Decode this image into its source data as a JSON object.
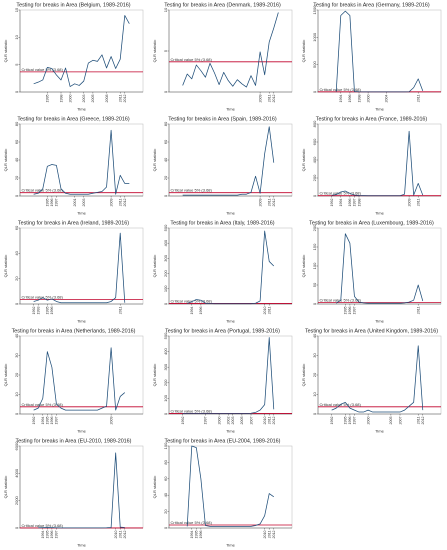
{
  "chart_data": [
    {
      "type": "line",
      "title": "Testing for breaks in Area (Belgium, 1989-2016)",
      "xlabel": "Time",
      "ylabel": "QLR statistic",
      "ylim": [
        0,
        15
      ],
      "yticks": [
        0,
        5,
        10,
        15
      ],
      "xticks": [
        "1995",
        "1998",
        "2000",
        "2003",
        "2005",
        "2008",
        "2011",
        "2012"
      ],
      "critical_value": 3.68,
      "critical_label": "Critical value 5% (3.68)",
      "x": [
        1992,
        1993,
        1994,
        1995,
        1996,
        1997,
        1998,
        1999,
        2000,
        2001,
        2002,
        2003,
        2004,
        2005,
        2006,
        2007,
        2008,
        2009,
        2010,
        2011,
        2012,
        2013
      ],
      "values": [
        1.5,
        1.8,
        2.2,
        4.5,
        4.3,
        3.1,
        2.2,
        4.4,
        1.0,
        1.5,
        1.2,
        2.0,
        5.3,
        5.8,
        5.6,
        6.8,
        4.4,
        6.5,
        4.3,
        6.0,
        14.0,
        12.5
      ]
    },
    {
      "type": "line",
      "title": "Testing for breaks in Area (Denmark, 1989-2016)",
      "xlabel": "Time",
      "ylabel": "QLR statistic",
      "ylim": [
        0,
        10
      ],
      "yticks": [
        0,
        5,
        10
      ],
      "xticks": [
        "2009",
        "2011",
        "2012"
      ],
      "critical_value": 3.68,
      "critical_label": "Critical value 5% (3.68)",
      "x": [
        1992,
        1993,
        1994,
        1995,
        1996,
        1997,
        1998,
        1999,
        2000,
        2001,
        2002,
        2003,
        2004,
        2005,
        2006,
        2007,
        2008,
        2009,
        2010,
        2011,
        2012,
        2013
      ],
      "values": [
        0.8,
        2.2,
        1.6,
        3.3,
        2.6,
        1.8,
        3.5,
        2.3,
        0.9,
        2.4,
        1.4,
        0.7,
        1.5,
        1.0,
        0.6,
        2.0,
        0.8,
        4.9,
        2.1,
        6.1,
        7.8,
        9.7
      ]
    },
    {
      "type": "line",
      "title": "Testing for breaks in Area (Germany, 1989-2016)",
      "xlabel": "Time",
      "ylabel": "QLR statistic",
      "ylim": [
        0,
        1500
      ],
      "yticks": [
        0,
        500,
        1000,
        1500
      ],
      "xticks": [
        "1994",
        "1996",
        "1998",
        "2000",
        "2004",
        "2011"
      ],
      "critical_value": 3.68,
      "critical_label": "Critical value 5% (3.68)",
      "x": [
        1993,
        1994,
        1995,
        1996,
        1997,
        1998,
        1999,
        2000,
        2001,
        2002,
        2003,
        2004,
        2005,
        2006,
        2007,
        2008,
        2009,
        2010,
        2011,
        2012
      ],
      "values": [
        5,
        1400,
        1480,
        1400,
        10,
        5,
        3,
        2,
        2,
        2,
        2,
        2,
        2,
        2,
        2,
        2,
        5,
        80,
        240,
        20
      ]
    },
    {
      "type": "line",
      "title": "Testing for breaks in Area (Greece, 1989-2016)",
      "xlabel": "Time",
      "ylabel": "QLR statistic",
      "ylim": [
        0,
        80
      ],
      "yticks": [
        0,
        20,
        40,
        60,
        80
      ],
      "xticks": [
        "1995",
        "1996",
        "1997",
        "2001",
        "2003",
        "2009",
        "2011",
        "2012"
      ],
      "critical_value": 3.68,
      "critical_label": "Critical value 5% (3.68)",
      "x": [
        1992,
        1993,
        1994,
        1995,
        1996,
        1997,
        1998,
        1999,
        2000,
        2001,
        2002,
        2003,
        2004,
        2005,
        2006,
        2007,
        2008,
        2009,
        2010,
        2011,
        2012,
        2013
      ],
      "values": [
        2,
        3,
        8,
        33,
        35,
        34,
        8,
        3,
        2,
        2,
        2,
        2,
        2,
        3,
        4,
        5,
        10,
        73,
        2,
        23,
        14,
        14
      ]
    },
    {
      "type": "line",
      "title": "Testing for breaks in Area (Spain, 1989-2016)",
      "xlabel": "Time",
      "ylabel": "QLR statistic",
      "ylim": [
        0,
        80
      ],
      "yticks": [
        0,
        20,
        40,
        60,
        80
      ],
      "xticks": [
        "2009",
        "2011",
        "2012"
      ],
      "critical_value": 3.68,
      "critical_label": "Critical value 5% (3.68)",
      "x": [
        1992,
        1993,
        1994,
        1995,
        1996,
        1997,
        1998,
        1999,
        2000,
        2001,
        2002,
        2003,
        2004,
        2005,
        2006,
        2007,
        2008,
        2009,
        2010,
        2011,
        2012
      ],
      "values": [
        1,
        1,
        1,
        1,
        1,
        1,
        1,
        1,
        1,
        1,
        1,
        1,
        1,
        2,
        2,
        4,
        22,
        3,
        47,
        77,
        37
      ]
    },
    {
      "type": "line",
      "title": "Testing for breaks in Area (France, 1989-2016)",
      "xlabel": "Time",
      "ylabel": "QLR statistic",
      "ylim": [
        0,
        800
      ],
      "yticks": [
        0,
        200,
        400,
        600,
        800
      ],
      "xticks": [
        "1992",
        "1994",
        "1996",
        "1997",
        "1998",
        "2009",
        "2011"
      ],
      "critical_value": 3.68,
      "critical_label": "Critical value 5% (3.68)",
      "x": [
        1992,
        1993,
        1994,
        1995,
        1996,
        1997,
        1998,
        1999,
        2000,
        2001,
        2002,
        2003,
        2004,
        2005,
        2006,
        2007,
        2008,
        2009,
        2010,
        2011,
        2012
      ],
      "values": [
        8,
        15,
        45,
        55,
        30,
        10,
        5,
        4,
        3,
        3,
        3,
        3,
        3,
        3,
        3,
        3,
        20,
        720,
        10,
        140,
        10
      ]
    },
    {
      "type": "line",
      "title": "Testing for breaks in Area (Ireland, 1989-2016)",
      "xlabel": "Time",
      "ylabel": "QLR statistic",
      "ylim": [
        0,
        60
      ],
      "yticks": [
        0,
        20,
        40,
        60
      ],
      "xticks": [
        "1992",
        "1993",
        "1995",
        "1996",
        "2011"
      ],
      "critical_value": 3.68,
      "critical_label": "Critical value 5% (3.68)",
      "x": [
        1992,
        1993,
        1994,
        1995,
        1996,
        1997,
        1998,
        1999,
        2000,
        2001,
        2002,
        2003,
        2004,
        2005,
        2006,
        2007,
        2008,
        2009,
        2010,
        2011,
        2012
      ],
      "values": [
        2,
        3,
        5,
        3,
        4,
        2,
        1,
        1,
        1,
        1,
        1,
        1,
        1,
        1,
        1,
        1,
        1,
        2,
        5,
        56,
        1
      ]
    },
    {
      "type": "line",
      "title": "Testing for breaks in Area (Italy, 1989-2016)",
      "xlabel": "Time",
      "ylabel": "QLR statistic",
      "ylim": [
        0,
        500
      ],
      "yticks": [
        0,
        100,
        200,
        300,
        400,
        500
      ],
      "xticks": [
        "1994",
        "1996",
        "2010",
        "2011"
      ],
      "critical_value": 3.68,
      "critical_label": "Critical value 5% (3.68)",
      "x": [
        1993,
        1994,
        1995,
        1996,
        1997,
        1998,
        1999,
        2000,
        2001,
        2002,
        2003,
        2004,
        2005,
        2006,
        2007,
        2008,
        2009,
        2010,
        2011,
        2012
      ],
      "values": [
        3,
        15,
        30,
        25,
        5,
        3,
        2,
        2,
        2,
        2,
        2,
        2,
        2,
        2,
        2,
        5,
        20,
        480,
        280,
        250
      ]
    },
    {
      "type": "line",
      "title": "Testing for breaks in Area (Luxembourg, 1989-2016)",
      "xlabel": "Time",
      "ylabel": "QLR statistic",
      "ylim": [
        0,
        200
      ],
      "yticks": [
        0,
        50,
        100,
        150,
        200
      ],
      "xticks": [
        "1995",
        "1996",
        "1997",
        "2011"
      ],
      "critical_value": 3.68,
      "critical_label": "Critical value 5% (3.68)",
      "x": [
        1993,
        1994,
        1995,
        1996,
        1997,
        1998,
        1999,
        2000,
        2001,
        2002,
        2003,
        2004,
        2005,
        2006,
        2007,
        2008,
        2009,
        2010,
        2011,
        2012
      ],
      "values": [
        2,
        10,
        185,
        160,
        20,
        5,
        3,
        2,
        2,
        2,
        2,
        2,
        2,
        2,
        2,
        3,
        5,
        10,
        50,
        8
      ]
    },
    {
      "type": "line",
      "title": "Testing for breaks in Area (Netherlands, 1989-2016)",
      "xlabel": "Time",
      "ylabel": "QLR statistic",
      "ylim": [
        0,
        40
      ],
      "yticks": [
        0,
        10,
        20,
        30,
        40
      ],
      "xticks": [
        "1992",
        "1994",
        "1995",
        "1996",
        "1997",
        "2009"
      ],
      "critical_value": 3.68,
      "critical_label": "Critical value 5% (3.68)",
      "x": [
        1992,
        1993,
        1994,
        1995,
        1996,
        1997,
        1998,
        1999,
        2000,
        2001,
        2002,
        2003,
        2004,
        2005,
        2006,
        2007,
        2008,
        2009,
        2010,
        2011,
        2012
      ],
      "values": [
        2,
        3,
        8,
        32,
        24,
        5,
        3,
        2,
        2,
        2,
        2,
        2,
        2,
        2,
        2,
        3,
        4,
        34,
        2,
        9,
        11
      ]
    },
    {
      "type": "line",
      "title": "Testing for breaks in Area (Portugal, 1989-2016)",
      "xlabel": "Time",
      "ylabel": "QLR statistic",
      "ylim": [
        0,
        500
      ],
      "yticks": [
        0,
        100,
        200,
        300,
        400,
        500
      ],
      "xticks": [
        "1992",
        "1997",
        "2000",
        "2002",
        "2003",
        "2005",
        "2007",
        "2010",
        "2011",
        "2012"
      ],
      "critical_value": 3.68,
      "critical_label": "Critical value 5% (3.68)",
      "x": [
        1992,
        1993,
        1994,
        1995,
        1996,
        1997,
        1998,
        1999,
        2000,
        2001,
        2002,
        2003,
        2004,
        2005,
        2006,
        2007,
        2008,
        2009,
        2010,
        2011,
        2012
      ],
      "values": [
        3,
        3,
        3,
        3,
        3,
        3,
        3,
        3,
        3,
        3,
        3,
        3,
        3,
        3,
        3,
        5,
        10,
        25,
        60,
        490,
        30
      ]
    },
    {
      "type": "line",
      "title": "Testing for breaks in Area (United Kingdom, 1989-2016)",
      "xlabel": "Time",
      "ylabel": "QLR statistic",
      "ylim": [
        0,
        40
      ],
      "yticks": [
        0,
        10,
        20,
        30,
        40
      ],
      "xticks": [
        "1992",
        "1995",
        "1996",
        "1997",
        "2000",
        "2005",
        "2007",
        "2011",
        "2012"
      ],
      "critical_value": 3.68,
      "critical_label": "Critical value 5% (3.68)",
      "x": [
        1992,
        1993,
        1994,
        1995,
        1996,
        1997,
        1998,
        1999,
        2000,
        2001,
        2002,
        2003,
        2004,
        2005,
        2006,
        2007,
        2008,
        2009,
        2010,
        2011,
        2012
      ],
      "values": [
        2,
        3,
        5,
        6,
        3,
        2,
        1,
        1,
        2,
        1,
        1,
        1,
        1,
        1,
        1,
        1,
        2,
        4,
        6,
        35,
        2
      ]
    },
    {
      "type": "line",
      "title": "Testing for breaks in Area (EU-2010, 1989-2016)",
      "xlabel": "Time",
      "ylabel": "QLR statistic",
      "ylim": [
        0,
        6000
      ],
      "yticks": [
        0,
        2000,
        4000,
        6000
      ],
      "xticks": [
        "1994",
        "1995",
        "1996",
        "1997",
        "2010",
        "2011",
        "2012"
      ],
      "critical_value": 3.68,
      "critical_label": "Critical value 5% (3.68)",
      "x": [
        1993,
        1994,
        1995,
        1996,
        1997,
        1998,
        1999,
        2000,
        2001,
        2002,
        2003,
        2004,
        2005,
        2006,
        2007,
        2008,
        2009,
        2010,
        2011,
        2012
      ],
      "values": [
        20,
        30,
        40,
        30,
        20,
        10,
        10,
        10,
        10,
        10,
        10,
        10,
        10,
        10,
        10,
        20,
        40,
        5500,
        60,
        40
      ]
    },
    {
      "type": "line",
      "title": "Testing for breaks in Area (EU-2004, 1989-2016)",
      "xlabel": "Time",
      "ylabel": "QLR statistic",
      "ylim": [
        0,
        100
      ],
      "yticks": [
        0,
        20,
        40,
        60,
        80,
        100
      ],
      "xticks": [
        "1994",
        "1995",
        "1996",
        "2010",
        "2011",
        "2012"
      ],
      "critical_value": 3.68,
      "critical_label": "Critical value 5% (3.68)",
      "x": [
        1993,
        1994,
        1995,
        1996,
        1997,
        1998,
        1999,
        2000,
        2001,
        2002,
        2003,
        2004,
        2005,
        2006,
        2007,
        2008,
        2009,
        2010,
        2011,
        2012
      ],
      "values": [
        2,
        100,
        98,
        60,
        3,
        2,
        2,
        2,
        2,
        2,
        2,
        2,
        2,
        2,
        2,
        3,
        5,
        15,
        42,
        38
      ]
    }
  ]
}
